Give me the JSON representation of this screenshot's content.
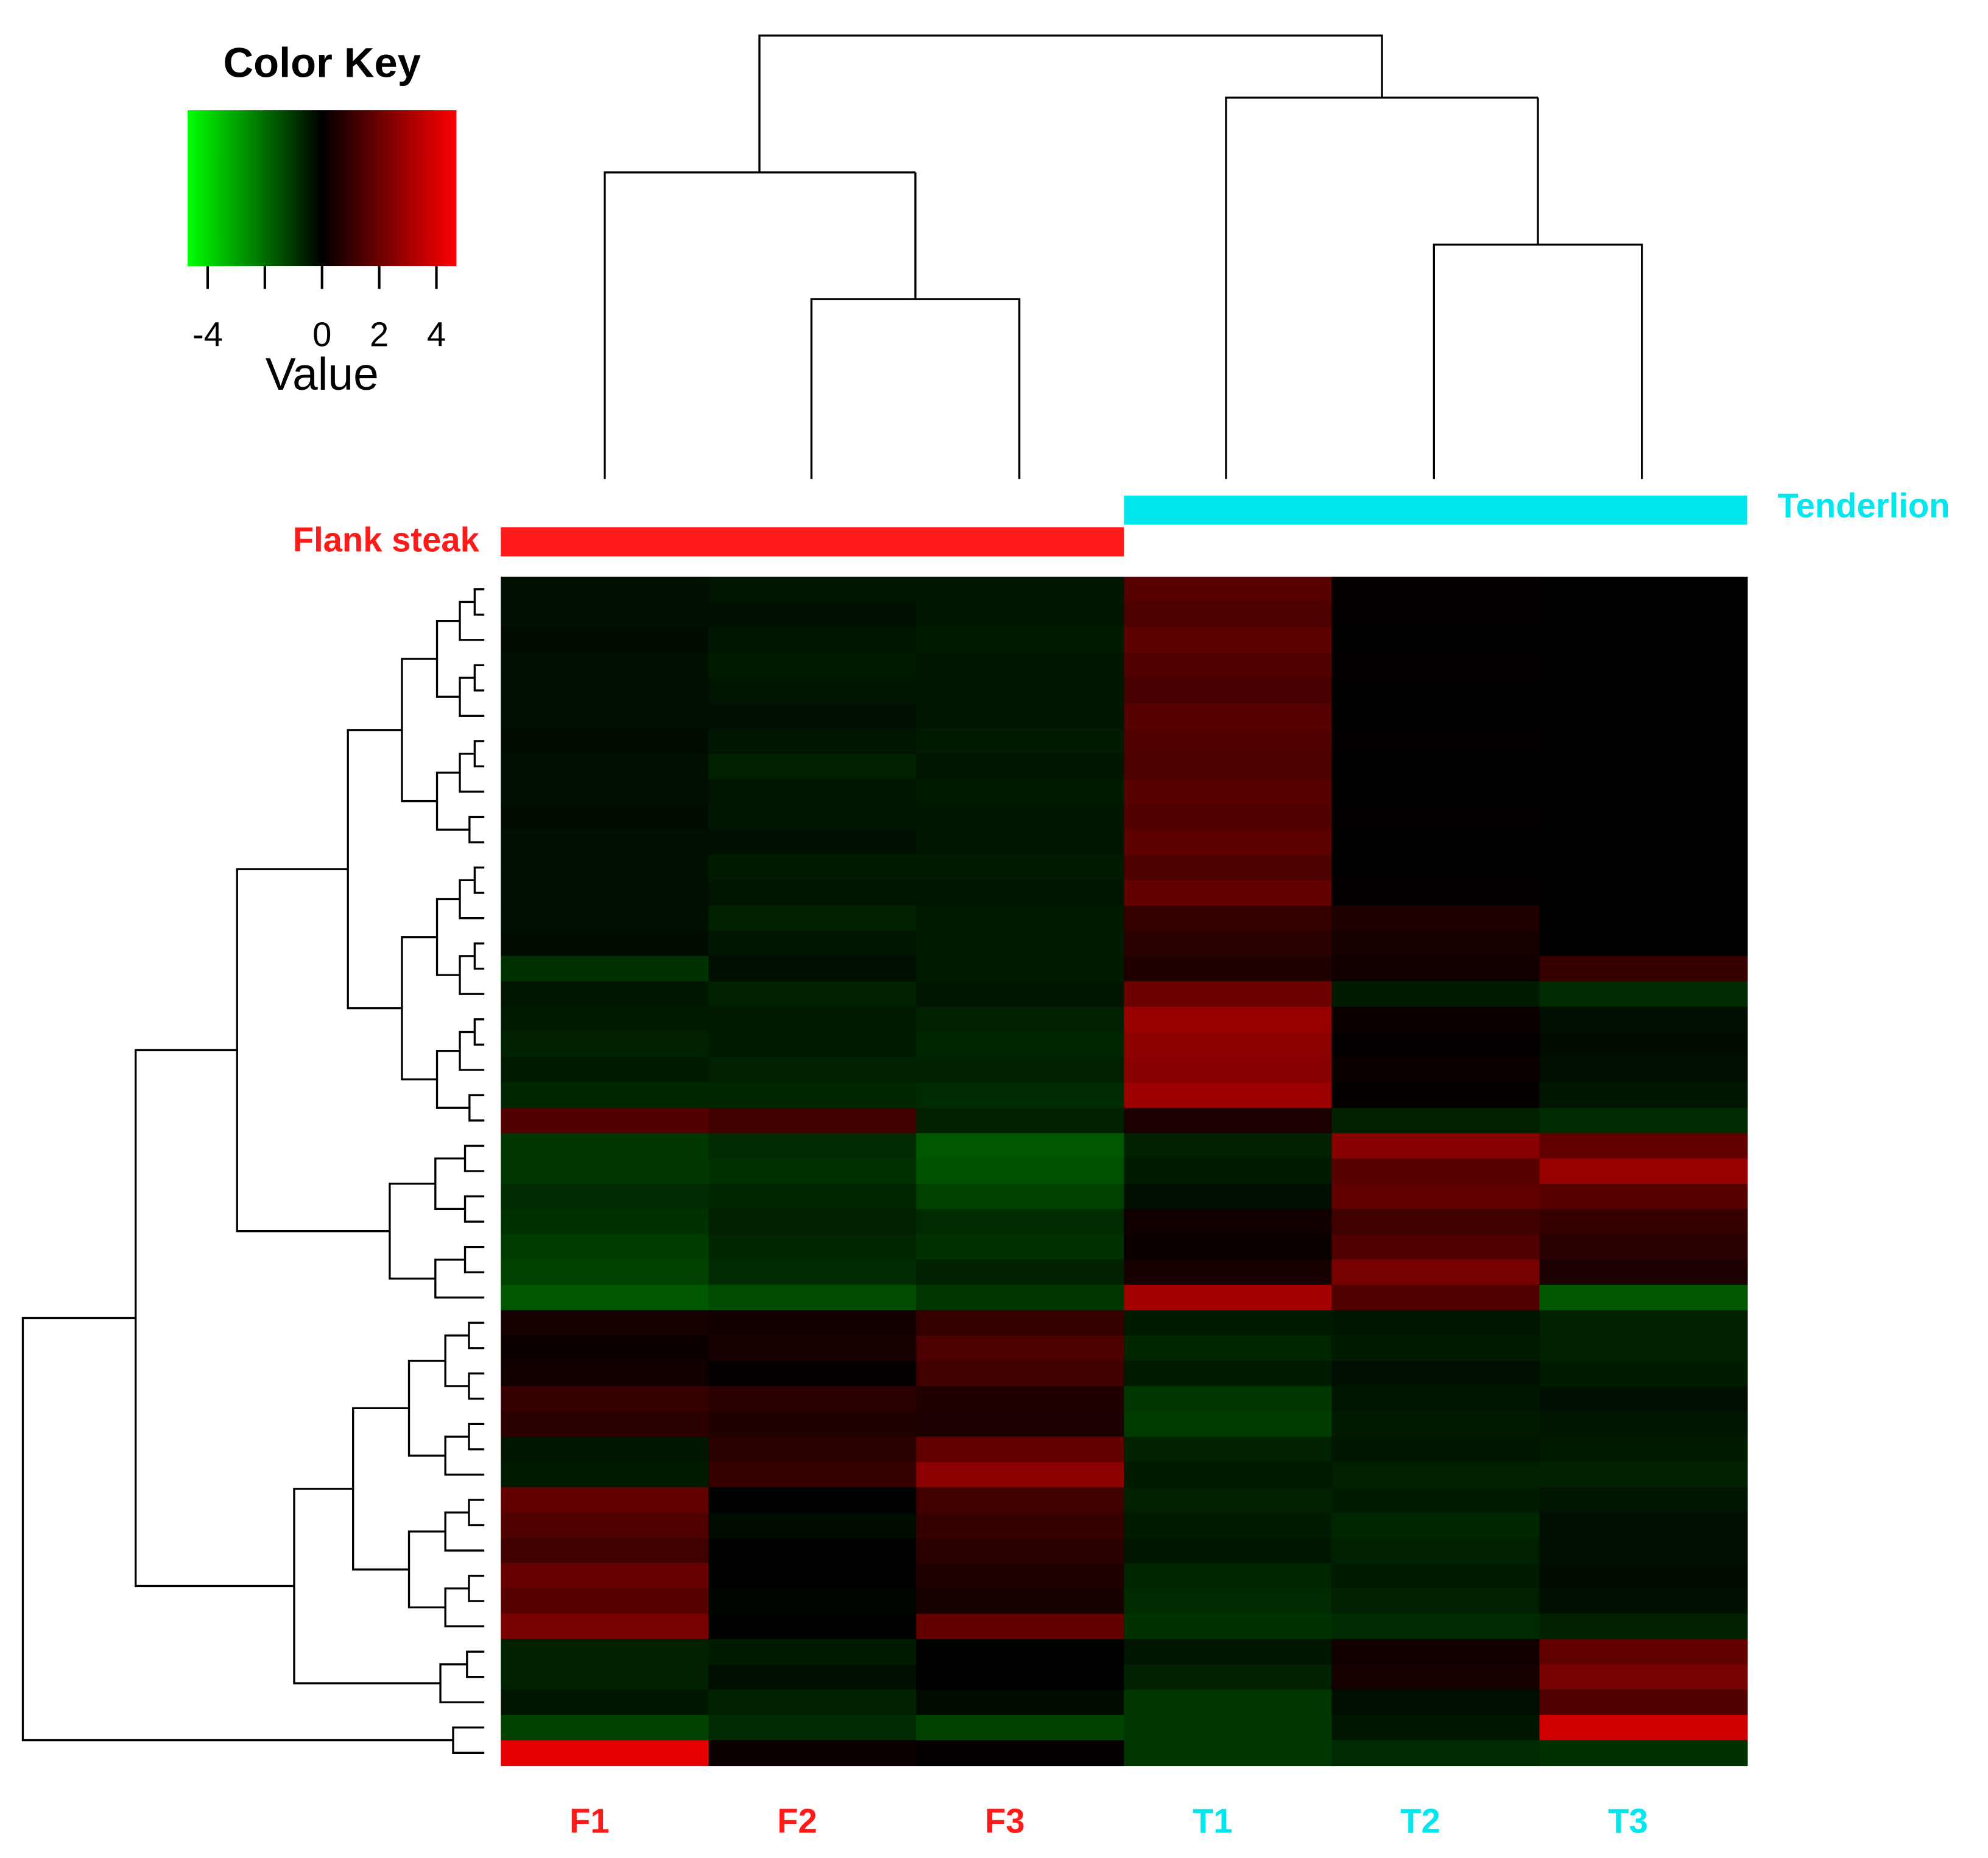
{
  "chart_data": {
    "type": "heatmap",
    "key_title": "Color Key",
    "key_label": "Value",
    "colorlim": [
      -4.7,
      4.7
    ],
    "key_ticks": [
      -4,
      0,
      2,
      4
    ],
    "key_minor_ticks": [
      -2
    ],
    "low_color": "#00ff00",
    "mid_color": "#000000",
    "high_color": "#ff0000",
    "groups": [
      {
        "name": "Flank steak",
        "color": "#ff1a1a"
      },
      {
        "name": "Tenderlion",
        "color": "#00e8ee"
      }
    ],
    "columns": [
      "F1",
      "F2",
      "F3",
      "T1",
      "T2",
      "T3"
    ],
    "column_group": [
      0,
      0,
      0,
      1,
      1,
      1
    ],
    "rows": [
      [
        -0.3,
        -0.4,
        -0.4,
        1.6,
        0.1,
        0
      ],
      [
        -0.3,
        -0.3,
        -0.4,
        1.4,
        0.1,
        0
      ],
      [
        -0.2,
        -0.4,
        -0.5,
        1.7,
        0,
        0
      ],
      [
        -0.3,
        -0.5,
        -0.4,
        1.5,
        0.1,
        0
      ],
      [
        -0.3,
        -0.4,
        -0.4,
        1.3,
        0,
        0
      ],
      [
        -0.3,
        -0.3,
        -0.4,
        1.6,
        0,
        0
      ],
      [
        -0.2,
        -0.4,
        -0.5,
        1.5,
        0.1,
        0
      ],
      [
        -0.3,
        -0.6,
        -0.4,
        1.4,
        0,
        0
      ],
      [
        -0.3,
        -0.4,
        -0.5,
        1.6,
        0,
        0
      ],
      [
        -0.2,
        -0.4,
        -0.4,
        1.5,
        0.1,
        0
      ],
      [
        -0.3,
        -0.3,
        -0.4,
        1.7,
        0,
        0
      ],
      [
        -0.3,
        -0.5,
        -0.5,
        1.4,
        0,
        0
      ],
      [
        -0.3,
        -0.4,
        -0.4,
        1.8,
        0.1,
        0
      ],
      [
        -0.3,
        -0.6,
        -0.5,
        1,
        0.6,
        0
      ],
      [
        -0.2,
        -0.4,
        -0.5,
        0.8,
        0.4,
        0
      ],
      [
        -0.9,
        -0.3,
        -0.5,
        0.6,
        0.3,
        1
      ],
      [
        -0.4,
        -0.6,
        -0.4,
        2,
        -0.5,
        -0.8
      ],
      [
        -0.5,
        -0.5,
        -0.6,
        2.8,
        0.2,
        -0.3
      ],
      [
        -0.6,
        -0.5,
        -0.7,
        2.6,
        0.1,
        -0.2
      ],
      [
        -0.5,
        -0.6,
        -0.6,
        2.5,
        0.2,
        -0.3
      ],
      [
        -0.7,
        -0.7,
        -0.8,
        2.9,
        0.1,
        -0.4
      ],
      [
        1.5,
        1.2,
        -0.6,
        0.5,
        -0.6,
        -0.8
      ],
      [
        -1,
        -0.8,
        -1.6,
        -0.6,
        2.5,
        1.8
      ],
      [
        -1,
        -0.9,
        -1.5,
        -0.5,
        1.6,
        2.8
      ],
      [
        -0.8,
        -0.7,
        -1.2,
        -0.3,
        1.8,
        1.6
      ],
      [
        -0.9,
        -0.6,
        -0.8,
        0.3,
        1.2,
        1
      ],
      [
        -1.1,
        -0.7,
        -0.9,
        0.2,
        1.5,
        0.8
      ],
      [
        -1.2,
        -0.8,
        -0.6,
        0.4,
        2.2,
        0.5
      ],
      [
        -1.6,
        -1.4,
        -1,
        3,
        1.5,
        -1.6
      ],
      [
        0.4,
        0.3,
        1,
        -0.5,
        -0.4,
        -0.6
      ],
      [
        0.2,
        0.4,
        1.4,
        -0.7,
        -0.5,
        -0.6
      ],
      [
        0.3,
        0.1,
        1.2,
        -0.5,
        -0.3,
        -0.5
      ],
      [
        1,
        0.8,
        0.6,
        -1,
        -0.4,
        -0.3
      ],
      [
        0.8,
        0.6,
        0.5,
        -1.1,
        -0.5,
        -0.4
      ],
      [
        -0.4,
        0.8,
        1.8,
        -0.6,
        -0.4,
        -0.5
      ],
      [
        -0.5,
        1,
        2.6,
        -0.5,
        -0.6,
        -0.6
      ],
      [
        1.8,
        0,
        1.2,
        -0.6,
        -0.5,
        -0.4
      ],
      [
        1.5,
        -0.2,
        1,
        -0.5,
        -0.7,
        -0.3
      ],
      [
        1.2,
        0,
        0.8,
        -0.4,
        -0.6,
        -0.3
      ],
      [
        1.9,
        0,
        0.6,
        -0.7,
        -0.5,
        -0.2
      ],
      [
        1.6,
        -0.1,
        0.4,
        -0.8,
        -0.6,
        -0.3
      ],
      [
        2.2,
        0,
        1.8,
        -0.9,
        -0.8,
        -0.6
      ],
      [
        -0.6,
        -0.5,
        0,
        -0.4,
        0.3,
        1.8
      ],
      [
        -0.6,
        -0.3,
        0,
        -0.6,
        0.4,
        2.2
      ],
      [
        -0.4,
        -0.6,
        -0.2,
        -1,
        -0.3,
        1.5
      ],
      [
        -1.2,
        -0.8,
        -1.2,
        -1,
        -0.4,
        3.8
      ],
      [
        4.2,
        0.2,
        0.1,
        -1,
        -0.8,
        -0.9
      ]
    ]
  }
}
